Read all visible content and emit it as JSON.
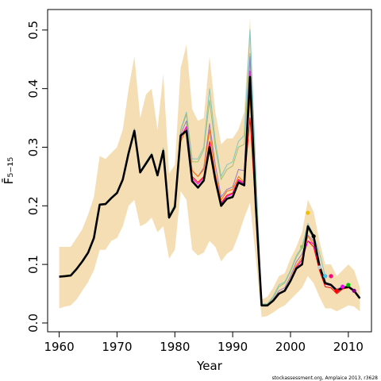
{
  "chart_data": {
    "type": "line",
    "xlabel": "Year",
    "ylabel": "F̄₅₋₁₅",
    "xlim": [
      1958,
      2014
    ],
    "ylim": [
      -0.015,
      0.535
    ],
    "x_ticks": [
      1960,
      1970,
      1980,
      1990,
      2000,
      2010
    ],
    "y_ticks": [
      0.0,
      0.1,
      0.2,
      0.3,
      0.4,
      0.5
    ],
    "x_tick_labels": [
      "1960",
      "1970",
      "1980",
      "1990",
      "2000",
      "2010"
    ],
    "y_tick_labels": [
      "0.0",
      "0.1",
      "0.2",
      "0.3",
      "0.4",
      "0.5"
    ],
    "grid": false,
    "credit": "stockassessment.org, Amplaice 2013, r3628",
    "band": {
      "color": "#F5DEB3",
      "x": [
        1960,
        1961,
        1962,
        1963,
        1964,
        1965,
        1966,
        1967,
        1968,
        1969,
        1970,
        1971,
        1972,
        1973,
        1974,
        1975,
        1976,
        1977,
        1978,
        1979,
        1980,
        1981,
        1982,
        1983,
        1984,
        1985,
        1986,
        1987,
        1988,
        1989,
        1990,
        1991,
        1992,
        1993,
        1994,
        1995,
        1996,
        1997,
        1998,
        1999,
        2000,
        2001,
        2002,
        2003,
        2004,
        2005,
        2006,
        2007,
        2008,
        2009,
        2010,
        2011,
        2012
      ],
      "upper": [
        0.13,
        0.13,
        0.13,
        0.145,
        0.16,
        0.185,
        0.215,
        0.285,
        0.28,
        0.29,
        0.3,
        0.33,
        0.4,
        0.455,
        0.35,
        0.39,
        0.4,
        0.33,
        0.425,
        0.255,
        0.27,
        0.435,
        0.475,
        0.365,
        0.345,
        0.35,
        0.455,
        0.36,
        0.305,
        0.315,
        0.315,
        0.33,
        0.36,
        0.52,
        0.27,
        0.04,
        0.045,
        0.06,
        0.08,
        0.085,
        0.11,
        0.13,
        0.155,
        0.21,
        0.19,
        0.14,
        0.1,
        0.1,
        0.08,
        0.09,
        0.1,
        0.09,
        0.06
      ],
      "lower": [
        0.025,
        0.028,
        0.03,
        0.04,
        0.055,
        0.07,
        0.09,
        0.125,
        0.125,
        0.14,
        0.145,
        0.165,
        0.2,
        0.21,
        0.165,
        0.17,
        0.18,
        0.155,
        0.165,
        0.11,
        0.125,
        0.225,
        0.21,
        0.125,
        0.115,
        0.12,
        0.14,
        0.13,
        0.105,
        0.118,
        0.125,
        0.15,
        0.18,
        0.205,
        0.11,
        0.01,
        0.012,
        0.018,
        0.025,
        0.03,
        0.04,
        0.05,
        0.06,
        0.08,
        0.068,
        0.045,
        0.025,
        0.025,
        0.02,
        0.025,
        0.03,
        0.028,
        0.02
      ]
    },
    "series": [
      {
        "color": "#000000",
        "width": 2.6,
        "x": [
          1960,
          1961,
          1962,
          1963,
          1964,
          1965,
          1966,
          1967,
          1968,
          1969,
          1970,
          1971,
          1972,
          1973,
          1974,
          1975,
          1976,
          1977,
          1978,
          1979,
          1980,
          1981,
          1982,
          1983,
          1984,
          1985,
          1986,
          1987,
          1988,
          1989,
          1990,
          1991,
          1992,
          1993,
          1994,
          1995,
          1996,
          1997,
          1998,
          1999,
          2000,
          2001,
          2002,
          2003,
          2004,
          2005,
          2006,
          2007,
          2008,
          2009,
          2010,
          2011,
          2012
        ],
        "y": [
          0.079,
          0.08,
          0.081,
          0.092,
          0.105,
          0.12,
          0.145,
          0.202,
          0.203,
          0.213,
          0.222,
          0.245,
          0.29,
          0.328,
          0.257,
          0.272,
          0.287,
          0.252,
          0.294,
          0.18,
          0.198,
          0.32,
          0.328,
          0.242,
          0.231,
          0.243,
          0.3,
          0.244,
          0.2,
          0.212,
          0.215,
          0.24,
          0.235,
          0.42,
          0.2,
          0.03,
          0.03,
          0.038,
          0.05,
          0.055,
          0.072,
          0.093,
          0.1,
          0.165,
          0.148,
          0.098,
          0.068,
          0.065,
          0.055,
          0.06,
          0.062,
          0.055,
          0.042
        ]
      },
      {
        "color": "#7ec8c8",
        "width": 1,
        "x": [
          1960,
          1961,
          1962,
          1963,
          1964,
          1965,
          1966,
          1967,
          1968,
          1969,
          1970,
          1971,
          1972,
          1973,
          1974,
          1975,
          1976,
          1977,
          1978,
          1979,
          1980,
          1981,
          1982,
          1983,
          1984,
          1985,
          1986,
          1987,
          1988,
          1989,
          1990,
          1991,
          1992,
          1993,
          1994,
          1995,
          1996,
          1997,
          1998,
          1999,
          2000,
          2001,
          2002,
          2003,
          2004,
          2005,
          2006
        ],
        "y": [
          0.079,
          0.08,
          0.081,
          0.092,
          0.106,
          0.121,
          0.146,
          0.203,
          0.204,
          0.214,
          0.223,
          0.246,
          0.292,
          0.332,
          0.259,
          0.275,
          0.29,
          0.256,
          0.299,
          0.184,
          0.203,
          0.33,
          0.36,
          0.28,
          0.28,
          0.3,
          0.4,
          0.31,
          0.25,
          0.27,
          0.275,
          0.31,
          0.32,
          0.5,
          0.26,
          0.032,
          0.033,
          0.045,
          0.065,
          0.07,
          0.09,
          0.115,
          0.13,
          0.17,
          0.15,
          0.12,
          0.08
        ]
      },
      {
        "color": "#a0c070",
        "width": 1,
        "x": [
          1960,
          1961,
          1962,
          1963,
          1964,
          1965,
          1966,
          1967,
          1968,
          1969,
          1970,
          1971,
          1972,
          1973,
          1974,
          1975,
          1976,
          1977,
          1978,
          1979,
          1980,
          1981,
          1982,
          1983,
          1984,
          1985,
          1986,
          1987,
          1988,
          1989,
          1990,
          1991,
          1992,
          1993,
          1994,
          1995,
          1996,
          1997,
          1998,
          1999,
          2000,
          2001,
          2002,
          2003,
          2004
        ],
        "y": [
          0.079,
          0.08,
          0.081,
          0.092,
          0.106,
          0.121,
          0.146,
          0.203,
          0.204,
          0.214,
          0.223,
          0.246,
          0.292,
          0.331,
          0.258,
          0.274,
          0.289,
          0.255,
          0.297,
          0.183,
          0.2,
          0.328,
          0.356,
          0.275,
          0.275,
          0.295,
          0.38,
          0.3,
          0.245,
          0.262,
          0.268,
          0.3,
          0.305,
          0.46,
          0.24,
          0.031,
          0.032,
          0.043,
          0.062,
          0.068,
          0.088,
          0.112,
          0.128,
          0.16,
          0.145
        ]
      },
      {
        "color": "#9a7ac8",
        "width": 1,
        "x": [
          1960,
          1961,
          1962,
          1963,
          1964,
          1965,
          1966,
          1967,
          1968,
          1969,
          1970,
          1971,
          1972,
          1973,
          1974,
          1975,
          1976,
          1977,
          1978,
          1979,
          1980,
          1981,
          1982,
          1983,
          1984,
          1985,
          1986,
          1987,
          1988,
          1989,
          1990,
          1991,
          1992,
          1993,
          1994,
          1995,
          1996,
          1997,
          1998,
          1999,
          2000,
          2001,
          2002,
          2003,
          2004,
          2005,
          2006,
          2007,
          2008,
          2009,
          2010,
          2011
        ],
        "y": [
          0.079,
          0.08,
          0.081,
          0.092,
          0.105,
          0.12,
          0.145,
          0.202,
          0.203,
          0.213,
          0.222,
          0.245,
          0.29,
          0.329,
          0.257,
          0.272,
          0.287,
          0.253,
          0.295,
          0.181,
          0.199,
          0.322,
          0.345,
          0.26,
          0.25,
          0.265,
          0.34,
          0.27,
          0.215,
          0.228,
          0.232,
          0.262,
          0.26,
          0.455,
          0.215,
          0.03,
          0.031,
          0.04,
          0.055,
          0.06,
          0.08,
          0.104,
          0.118,
          0.15,
          0.14,
          0.098,
          0.07,
          0.066,
          0.058,
          0.062,
          0.062,
          0.054
        ]
      },
      {
        "color": "#ff6a00",
        "width": 1,
        "x": [
          1960,
          1961,
          1962,
          1963,
          1964,
          1965,
          1966,
          1967,
          1968,
          1969,
          1970,
          1971,
          1972,
          1973,
          1974,
          1975,
          1976,
          1977,
          1978,
          1979,
          1980,
          1981,
          1982,
          1983,
          1984,
          1985,
          1986,
          1987,
          1988,
          1989,
          1990,
          1991,
          1992,
          1993,
          1994,
          1995,
          1996,
          1997,
          1998,
          1999,
          2000,
          2001,
          2002,
          2003,
          2004,
          2005,
          2006,
          2007
        ],
        "y": [
          0.079,
          0.08,
          0.081,
          0.092,
          0.105,
          0.12,
          0.145,
          0.202,
          0.203,
          0.213,
          0.222,
          0.245,
          0.29,
          0.327,
          0.257,
          0.272,
          0.287,
          0.252,
          0.295,
          0.181,
          0.2,
          0.31,
          0.33,
          0.26,
          0.25,
          0.262,
          0.33,
          0.255,
          0.21,
          0.225,
          0.228,
          0.25,
          0.24,
          0.385,
          0.19,
          0.029,
          0.03,
          0.038,
          0.05,
          0.056,
          0.075,
          0.098,
          0.112,
          0.148,
          0.135,
          0.095,
          0.068,
          0.065
        ]
      },
      {
        "color": "#ff0000",
        "width": 1,
        "x": [
          1960,
          1961,
          1962,
          1963,
          1964,
          1965,
          1966,
          1967,
          1968,
          1969,
          1970,
          1971,
          1972,
          1973,
          1974,
          1975,
          1976,
          1977,
          1978,
          1979,
          1980,
          1981,
          1982,
          1983,
          1984,
          1985,
          1986,
          1987,
          1988,
          1989,
          1990,
          1991,
          1992,
          1993,
          1994,
          1995,
          1996,
          1997,
          1998,
          1999,
          2000,
          2001,
          2002,
          2003,
          2004,
          2005,
          2006,
          2007,
          2008,
          2009,
          2010
        ],
        "y": [
          0.079,
          0.08,
          0.081,
          0.092,
          0.105,
          0.12,
          0.145,
          0.202,
          0.203,
          0.213,
          0.222,
          0.245,
          0.29,
          0.327,
          0.257,
          0.272,
          0.287,
          0.252,
          0.294,
          0.18,
          0.198,
          0.318,
          0.335,
          0.25,
          0.24,
          0.25,
          0.31,
          0.25,
          0.205,
          0.218,
          0.222,
          0.245,
          0.238,
          0.35,
          0.19,
          0.029,
          0.03,
          0.038,
          0.05,
          0.055,
          0.073,
          0.095,
          0.108,
          0.14,
          0.13,
          0.09,
          0.062,
          0.06,
          0.05,
          0.058,
          0.06
        ]
      },
      {
        "color": "#ff00ff",
        "width": 1,
        "x": [
          1960,
          1961,
          1962,
          1963,
          1964,
          1965,
          1966,
          1967,
          1968,
          1969,
          1970,
          1971,
          1972,
          1973,
          1974,
          1975,
          1976,
          1977,
          1978,
          1979,
          1980,
          1981,
          1982,
          1983,
          1984,
          1985,
          1986,
          1987,
          1988,
          1989,
          1990,
          1991,
          1992,
          1993,
          1994,
          1995,
          1996,
          1997,
          1998,
          1999,
          2000,
          2001,
          2002,
          2003,
          2004,
          2005,
          2006,
          2007,
          2008,
          2009
        ],
        "y": [
          0.079,
          0.08,
          0.081,
          0.092,
          0.105,
          0.12,
          0.145,
          0.202,
          0.203,
          0.213,
          0.222,
          0.245,
          0.29,
          0.327,
          0.257,
          0.272,
          0.287,
          0.252,
          0.294,
          0.18,
          0.198,
          0.315,
          0.335,
          0.247,
          0.237,
          0.248,
          0.305,
          0.248,
          0.203,
          0.216,
          0.22,
          0.243,
          0.238,
          0.43,
          0.2,
          0.029,
          0.03,
          0.038,
          0.05,
          0.055,
          0.073,
          0.094,
          0.108,
          0.14,
          0.135,
          0.095,
          0.066,
          0.064,
          0.056,
          0.06
        ]
      }
    ],
    "endpoints": [
      {
        "x": 2002,
        "y": 0.13,
        "color": "#a0c070"
      },
      {
        "x": 2003,
        "y": 0.188,
        "color": "#f0c000"
      },
      {
        "x": 2004,
        "y": 0.148,
        "color": "#000000"
      },
      {
        "x": 2005,
        "y": 0.095,
        "color": "#c8c8c8"
      },
      {
        "x": 2006,
        "y": 0.08,
        "color": "#40c8e8"
      },
      {
        "x": 2007,
        "y": 0.08,
        "color": "#ff0080"
      },
      {
        "x": 2008,
        "y": 0.055,
        "color": "#ff0000"
      },
      {
        "x": 2009,
        "y": 0.062,
        "color": "#ff00ff"
      },
      {
        "x": 2010,
        "y": 0.065,
        "color": "#00c000"
      },
      {
        "x": 2011,
        "y": 0.055,
        "color": "#800080"
      }
    ]
  }
}
